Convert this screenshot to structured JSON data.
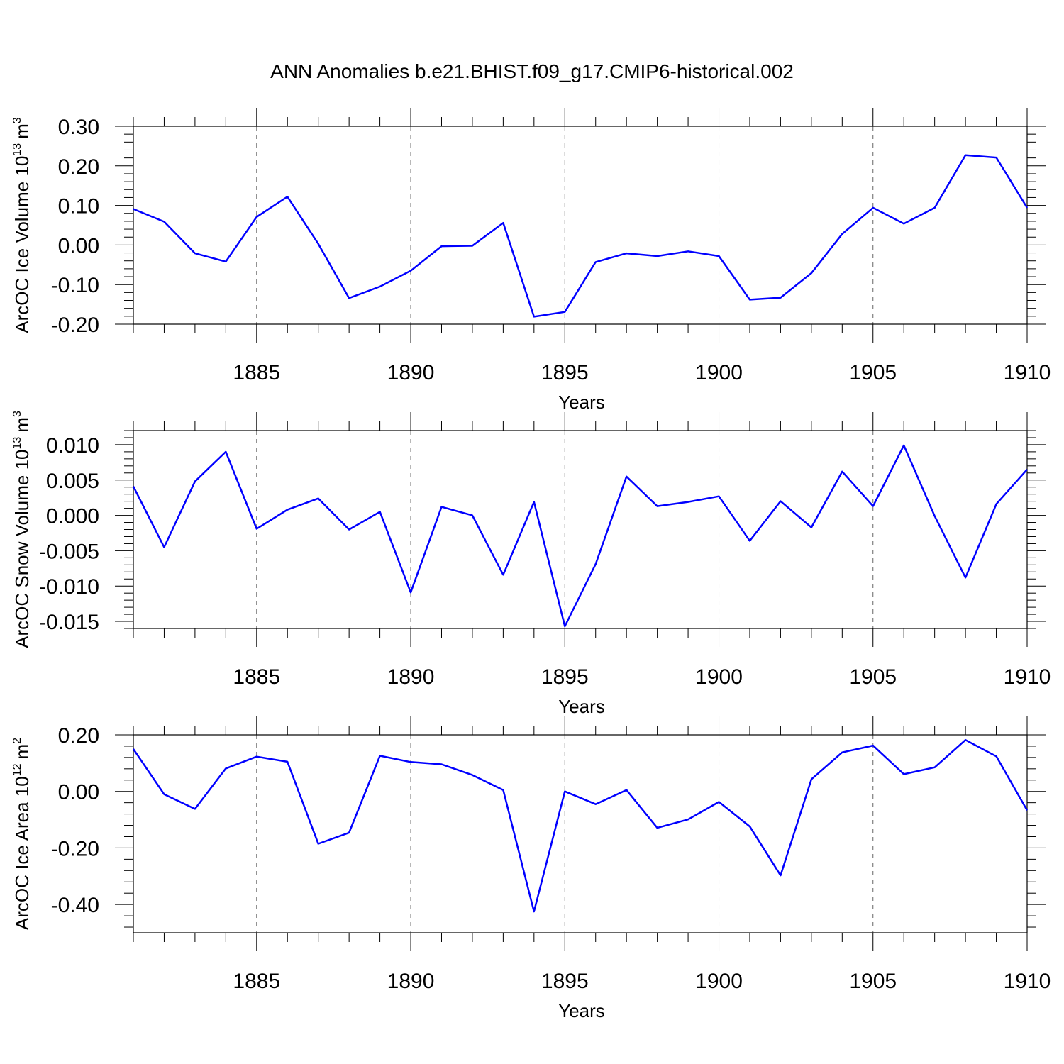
{
  "title": "ANN Anomalies b.e21.BHIST.f09_g17.CMIP6-historical.002",
  "line_color": "#0000ff",
  "chart_data": [
    {
      "type": "line",
      "ylabel_main": "ArcOC Ice Volume 10",
      "ylabel_sup": "13",
      "ylabel_unit": "m",
      "ylabel_unit_sup": "3",
      "xlabel": "Years",
      "xlim": [
        1881,
        1910
      ],
      "ylim": [
        -0.2,
        0.3
      ],
      "yticks": [
        -0.2,
        -0.1,
        0.0,
        0.1,
        0.2,
        0.3
      ],
      "yticklabels": [
        "-0.20",
        "-0.10",
        "0.00",
        "0.10",
        "0.20",
        "0.30"
      ],
      "xticks": [
        1885,
        1890,
        1895,
        1900,
        1905,
        1910
      ],
      "xticklabels": [
        "1885",
        "1890",
        "1895",
        "1900",
        "1905",
        "1910"
      ],
      "grid": "vertical dashed at labeled years",
      "x": [
        1881,
        1882,
        1883,
        1884,
        1885,
        1886,
        1887,
        1888,
        1889,
        1890,
        1891,
        1892,
        1893,
        1894,
        1895,
        1896,
        1897,
        1898,
        1899,
        1900,
        1901,
        1902,
        1903,
        1904,
        1905,
        1906,
        1907,
        1908,
        1909,
        1910
      ],
      "values": [
        0.091,
        0.059,
        -0.021,
        -0.042,
        0.071,
        0.122,
        0.003,
        -0.134,
        -0.105,
        -0.065,
        -0.003,
        -0.002,
        0.056,
        -0.181,
        -0.169,
        -0.043,
        -0.021,
        -0.028,
        -0.016,
        -0.028,
        -0.138,
        -0.133,
        -0.071,
        0.028,
        0.094,
        0.054,
        0.094,
        0.227,
        0.221,
        0.094
      ]
    },
    {
      "type": "line",
      "ylabel_main": "ArcOC Snow Volume 10",
      "ylabel_sup": "13",
      "ylabel_unit": "m",
      "ylabel_unit_sup": "3",
      "xlabel": "Years",
      "xlim": [
        1881,
        1910
      ],
      "ylim": [
        -0.016,
        0.012
      ],
      "yticks": [
        -0.015,
        -0.01,
        -0.005,
        0.0,
        0.005,
        0.01
      ],
      "yticklabels": [
        "-0.015",
        "-0.010",
        "-0.005",
        "0.000",
        "0.005",
        "0.010"
      ],
      "xticks": [
        1885,
        1890,
        1895,
        1900,
        1905,
        1910
      ],
      "xticklabels": [
        "1885",
        "1890",
        "1895",
        "1900",
        "1905",
        "1910"
      ],
      "grid": "vertical dashed at labeled years",
      "x": [
        1881,
        1882,
        1883,
        1884,
        1885,
        1886,
        1887,
        1888,
        1889,
        1890,
        1891,
        1892,
        1893,
        1894,
        1895,
        1896,
        1897,
        1898,
        1899,
        1900,
        1901,
        1902,
        1903,
        1904,
        1905,
        1906,
        1907,
        1908,
        1909,
        1910
      ],
      "values": [
        0.0041,
        -0.0045,
        0.0048,
        0.009,
        -0.0019,
        0.0008,
        0.0024,
        -0.002,
        0.0005,
        -0.0109,
        0.0012,
        0.0,
        -0.0084,
        0.0019,
        -0.0157,
        -0.0069,
        0.0055,
        0.0013,
        0.0019,
        0.0027,
        -0.0036,
        0.002,
        -0.0017,
        0.0062,
        0.0013,
        0.0099,
        -0.0001,
        -0.0088,
        0.0016,
        0.0065
      ]
    },
    {
      "type": "line",
      "ylabel_main": "ArcOC Ice Area 10",
      "ylabel_sup": "12",
      "ylabel_unit": "m",
      "ylabel_unit_sup": "2",
      "xlabel": "Years",
      "xlim": [
        1881,
        1910
      ],
      "ylim": [
        -0.5,
        0.2
      ],
      "yticks": [
        -0.4,
        -0.2,
        0.0,
        0.2
      ],
      "yticklabels": [
        "-0.40",
        "-0.20",
        "0.00",
        "0.20"
      ],
      "xticks": [
        1885,
        1890,
        1895,
        1900,
        1905,
        1910
      ],
      "xticklabels": [
        "1885",
        "1890",
        "1895",
        "1900",
        "1905",
        "1910"
      ],
      "grid": "vertical dashed at labeled years",
      "x": [
        1881,
        1882,
        1883,
        1884,
        1885,
        1886,
        1887,
        1888,
        1889,
        1890,
        1891,
        1892,
        1893,
        1894,
        1895,
        1896,
        1897,
        1898,
        1899,
        1900,
        1901,
        1902,
        1903,
        1904,
        1905,
        1906,
        1907,
        1908,
        1909,
        1910
      ],
      "values": [
        0.15,
        -0.01,
        -0.062,
        0.081,
        0.123,
        0.105,
        -0.185,
        -0.146,
        0.126,
        0.104,
        0.096,
        0.058,
        0.005,
        -0.425,
        0.0,
        -0.045,
        0.005,
        -0.129,
        -0.099,
        -0.037,
        -0.124,
        -0.297,
        0.043,
        0.138,
        0.162,
        0.061,
        0.085,
        0.182,
        0.124,
        -0.067
      ]
    }
  ]
}
